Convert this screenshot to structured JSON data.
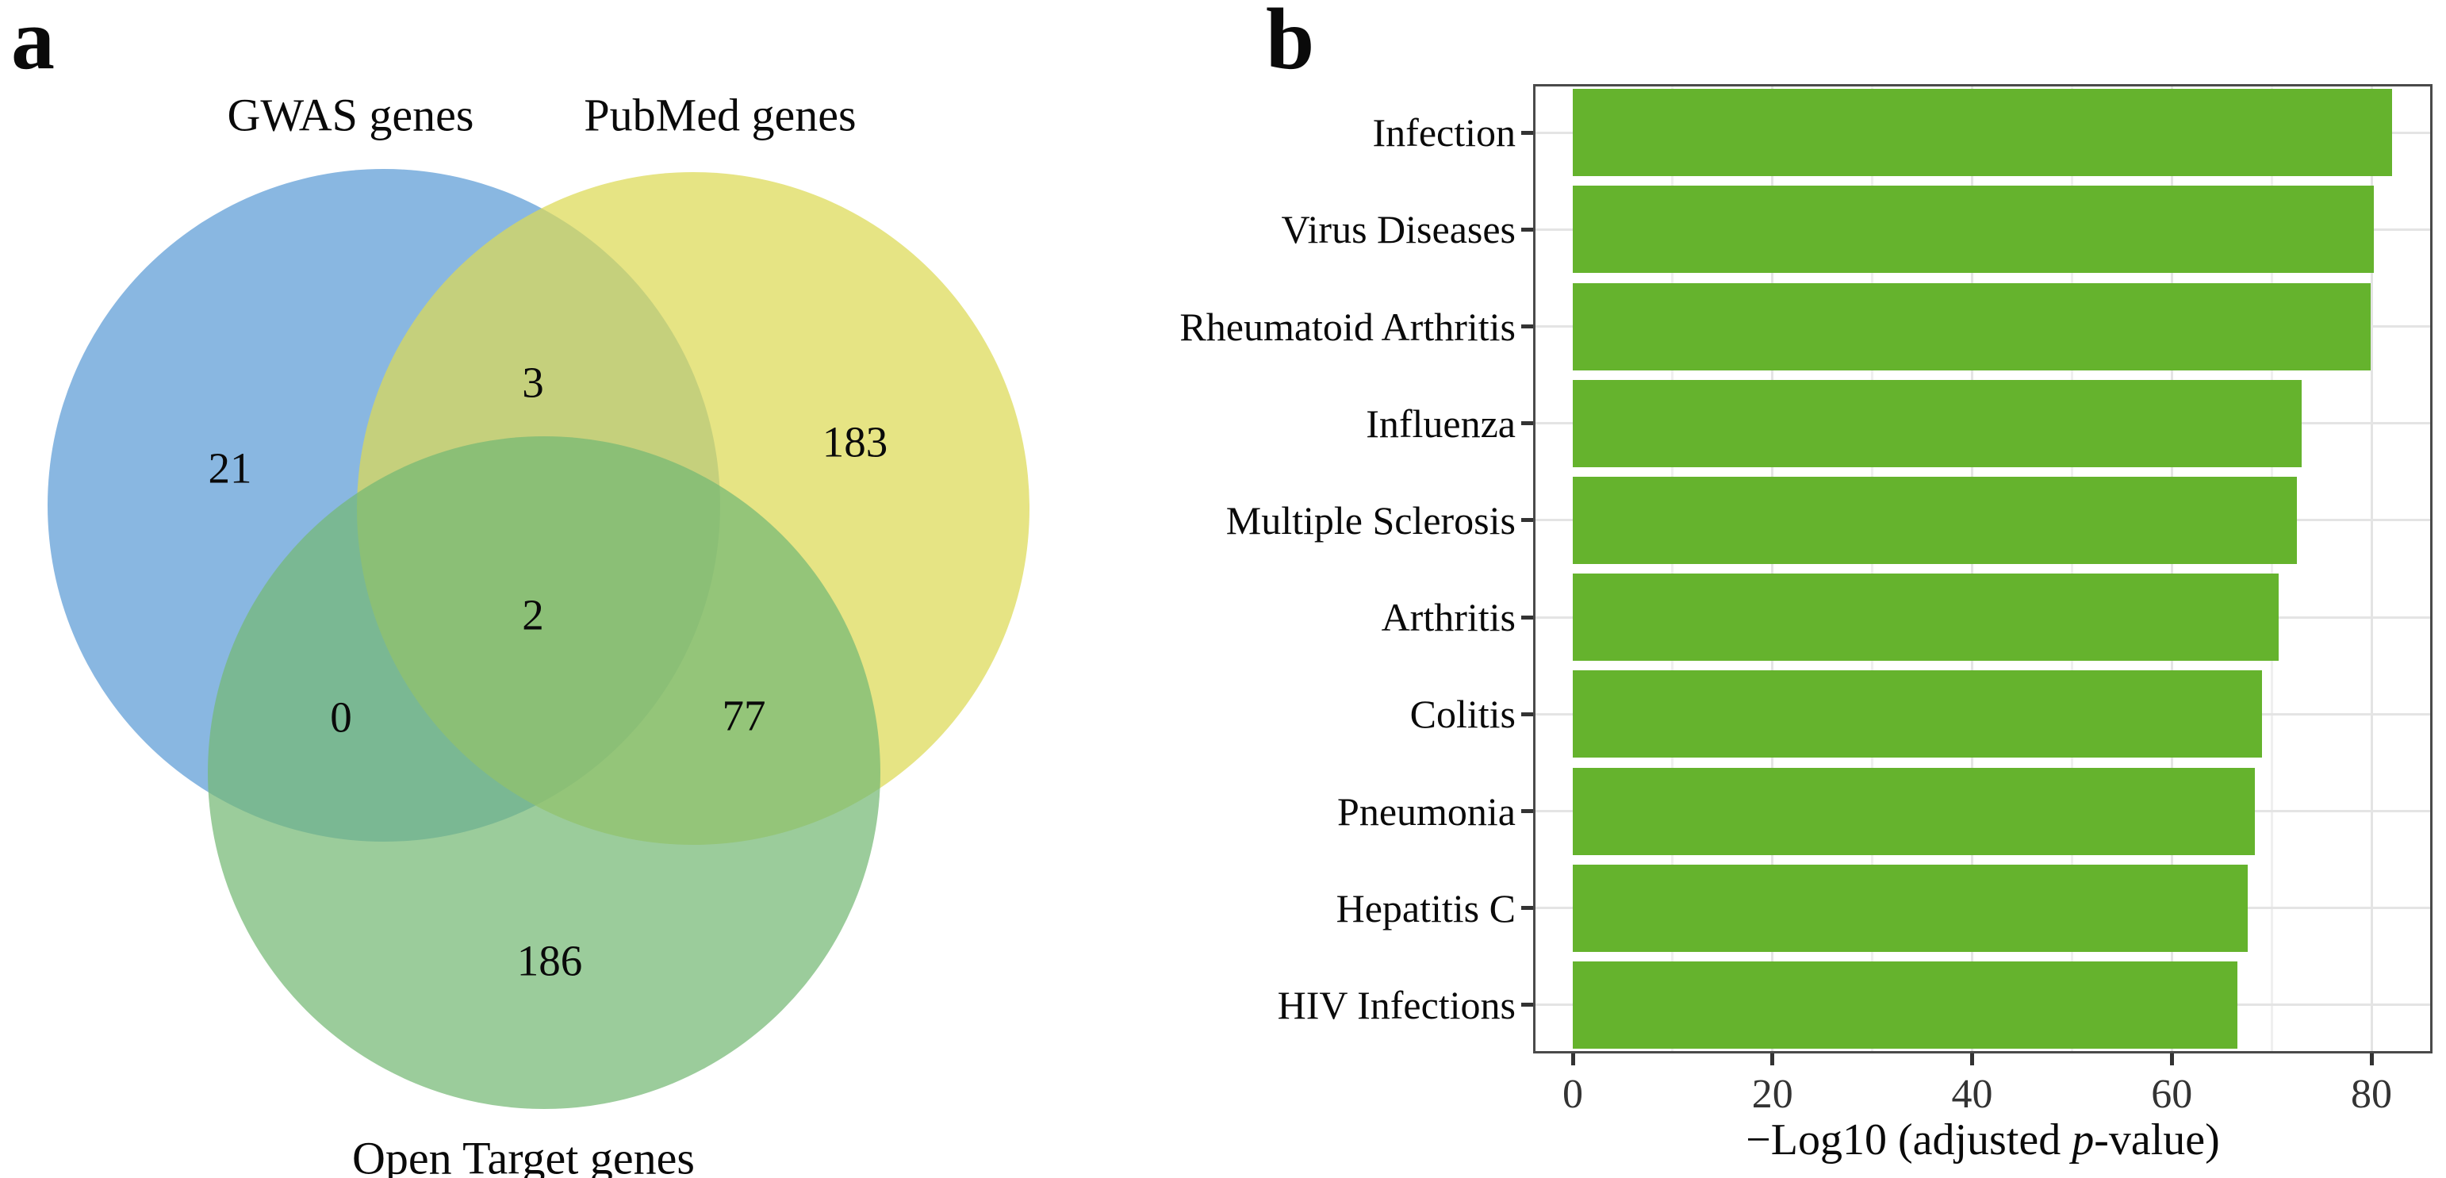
{
  "figure": {
    "panel_a_label": "a",
    "panel_b_label": "b",
    "background": "#ffffff"
  },
  "venn": {
    "sets": [
      {
        "id": "gwas",
        "label": "GWAS genes",
        "color": "#5b9bd5"
      },
      {
        "id": "pubmed",
        "label": "PubMed genes",
        "color": "#dcda55"
      },
      {
        "id": "opentarget",
        "label": "Open Target genes",
        "color": "#74b874"
      }
    ],
    "counts": {
      "gwas_only": "21",
      "gwas_pubmed": "3",
      "pubmed_only": "183",
      "gwas_opentarget": "0",
      "all_three": "2",
      "pubmed_opentarget": "77",
      "opentarget_only": "186"
    }
  },
  "chart_data": {
    "type": "bar",
    "orientation": "horizontal",
    "title": "",
    "categories": [
      "Infection",
      "Virus Diseases",
      "Rheumatoid Arthritis",
      "Influenza",
      "Multiple Sclerosis",
      "Arthritis",
      "Colitis",
      "Pneumonia",
      "Hepatitis C",
      "HIV Infections"
    ],
    "values": [
      82.1,
      80.2,
      79.9,
      73.0,
      72.5,
      70.7,
      69.0,
      68.3,
      67.6,
      66.6
    ],
    "xlabel_text": "−Log10 (adjusted p-value)",
    "xlabel_parts": {
      "prefix": "−Log10 (adjusted ",
      "italic": "p",
      "suffix": "-value)"
    },
    "ylabel": "",
    "xticks": [
      0,
      20,
      40,
      60,
      80
    ],
    "xlim": [
      0,
      86
    ],
    "grid": "on",
    "gridline_step": 10,
    "legend": "none",
    "bar_color": "#65b32d",
    "grid_color_major": "#e4e4e4",
    "grid_color_minor": "#efefef",
    "axis_color": "#4a4a4a",
    "tick_color": "#333333"
  }
}
